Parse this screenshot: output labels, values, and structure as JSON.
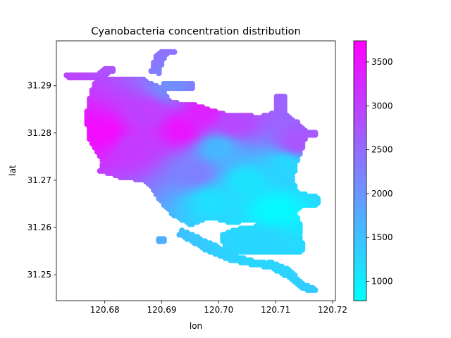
{
  "chart_data": {
    "type": "scatter",
    "title": "Cyanobacteria concentration distribution",
    "xlabel": "lon",
    "ylabel": "lat",
    "xlim": [
      120.6715,
      120.7205
    ],
    "ylim": [
      31.2445,
      31.2995
    ],
    "xticks": [
      120.68,
      120.69,
      120.7,
      120.71,
      120.72
    ],
    "yticks": [
      31.25,
      31.26,
      31.27,
      31.28,
      31.29
    ],
    "colorbar": {
      "min": 780,
      "max": 3740,
      "ticks": [
        1000,
        1500,
        2000,
        2500,
        3000,
        3500
      ],
      "colormap": "cool",
      "low_color": "#00ffff",
      "high_color": "#ff00ff"
    },
    "grid": false,
    "regions": [
      {
        "name": "main_body",
        "lon": [
          [
            120.6785,
            31.2915
          ],
          [
            120.687,
            31.2915
          ],
          [
            120.688,
            31.2905
          ],
          [
            120.69,
            31.2895
          ],
          [
            120.6915,
            31.2865
          ],
          [
            120.6955,
            31.286
          ],
          [
            120.6985,
            31.285
          ],
          [
            120.701,
            31.284
          ],
          [
            120.704,
            31.2838
          ],
          [
            120.7075,
            31.2835
          ],
          [
            120.7095,
            31.2842
          ],
          [
            120.711,
            31.2852
          ],
          [
            120.712,
            31.2838
          ],
          [
            120.714,
            31.2822
          ],
          [
            120.7155,
            31.28
          ],
          [
            120.7148,
            31.277
          ],
          [
            120.7138,
            31.274
          ],
          [
            120.713,
            31.27
          ],
          [
            120.714,
            31.267
          ],
          [
            120.715,
            31.265
          ],
          [
            120.7135,
            31.2635
          ],
          [
            120.7145,
            31.26
          ],
          [
            120.714,
            31.257
          ],
          [
            120.709,
            31.255
          ],
          [
            120.706,
            31.2545
          ],
          [
            120.702,
            31.2555
          ],
          [
            120.701,
            31.2575
          ],
          [
            120.705,
            31.259
          ],
          [
            120.708,
            31.2615
          ],
          [
            120.702,
            31.261
          ],
          [
            120.6985,
            31.262
          ],
          [
            120.695,
            31.2605
          ],
          [
            120.692,
            31.2625
          ],
          [
            120.6895,
            31.266
          ],
          [
            120.6875,
            31.2695
          ],
          [
            120.686,
            31.27
          ],
          [
            120.684,
            31.2705
          ],
          [
            120.682,
            31.271
          ],
          [
            120.68,
            31.273
          ],
          [
            120.6785,
            31.276
          ],
          [
            120.677,
            31.279
          ],
          [
            120.6768,
            31.284
          ],
          [
            120.6775,
            31.2885
          ]
        ]
      }
    ],
    "hotspots": [
      {
        "lon": 120.68,
        "lat": 31.2805,
        "value": 3600
      },
      {
        "lon": 120.6935,
        "lat": 31.281,
        "value": 3500
      },
      {
        "lon": 120.6975,
        "lat": 31.2845,
        "value": 3350
      },
      {
        "lon": 120.6875,
        "lat": 31.2845,
        "value": 3000
      },
      {
        "lon": 120.6855,
        "lat": 31.2775,
        "value": 3050
      },
      {
        "lon": 120.703,
        "lat": 31.2825,
        "value": 2900
      },
      {
        "lon": 120.714,
        "lat": 31.2785,
        "value": 2750
      },
      {
        "lon": 120.696,
        "lat": 31.272,
        "value": 2250
      },
      {
        "lon": 120.692,
        "lat": 31.29,
        "value": 2100
      },
      {
        "lon": 120.71,
        "lat": 31.264,
        "value": 850
      },
      {
        "lon": 120.705,
        "lat": 31.27,
        "value": 1100
      },
      {
        "lon": 120.699,
        "lat": 31.266,
        "value": 1150
      },
      {
        "lon": 120.7,
        "lat": 31.277,
        "value": 1600
      },
      {
        "lon": 120.712,
        "lat": 31.2735,
        "value": 1250
      },
      {
        "lon": 120.708,
        "lat": 31.2575,
        "value": 1250
      }
    ]
  }
}
